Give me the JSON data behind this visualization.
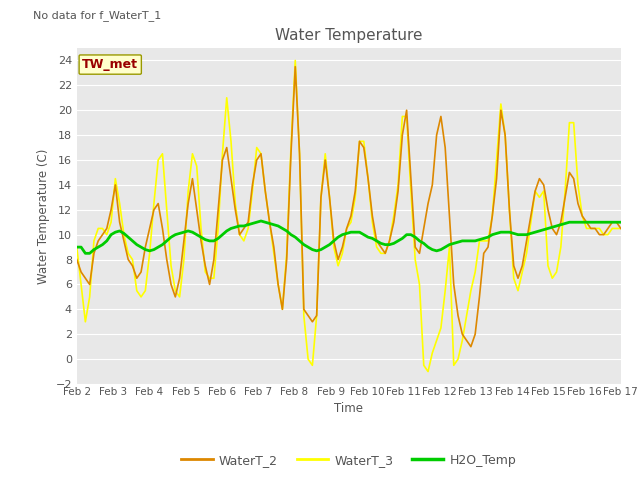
{
  "title": "Water Temperature",
  "ylabel": "Water Temperature (C)",
  "xlabel": "Time",
  "top_left_text": "No data for f_WaterT_1",
  "annotation_box_text": "TW_met",
  "annotation_box_color": "#990000",
  "annotation_box_facecolor": "#ffffcc",
  "annotation_box_edgecolor": "#999900",
  "ylim": [
    -2,
    25
  ],
  "yticks": [
    -2,
    0,
    2,
    4,
    6,
    8,
    10,
    12,
    14,
    16,
    18,
    20,
    22,
    24
  ],
  "fig_bg_color": "#ffffff",
  "plot_bg_color": "#e8e8e8",
  "grid_color": "#ffffff",
  "line_colors": {
    "WaterT_2": "#dd8800",
    "WaterT_3": "#ffff00",
    "H2O_Temp": "#00cc00"
  },
  "line_widths": {
    "WaterT_2": 1.2,
    "WaterT_3": 1.2,
    "H2O_Temp": 2.0
  },
  "tick_color": "#555555",
  "label_color": "#555555",
  "title_color": "#555555",
  "xtick_labels": [
    "Feb 2",
    "Feb 3",
    "Feb 4",
    "Feb 5",
    "Feb 6",
    "Feb 7",
    "Feb 8",
    "Feb 9",
    "Feb 10",
    "Feb 11",
    "Feb 12",
    "Feb 13",
    "Feb 14",
    "Feb 15",
    "Feb 16",
    "Feb 17"
  ],
  "WaterT_2": [
    8.0,
    7.0,
    6.5,
    6.0,
    8.5,
    9.5,
    10.0,
    10.5,
    12.0,
    14.0,
    11.0,
    9.5,
    8.0,
    7.5,
    6.5,
    7.0,
    9.0,
    10.5,
    12.0,
    12.5,
    10.5,
    8.0,
    6.0,
    5.0,
    6.5,
    9.5,
    12.5,
    14.5,
    12.0,
    9.5,
    7.5,
    6.0,
    8.0,
    12.0,
    16.0,
    17.0,
    14.5,
    12.0,
    10.0,
    10.5,
    11.0,
    14.0,
    16.0,
    16.5,
    13.5,
    11.0,
    9.0,
    6.0,
    4.0,
    8.0,
    16.5,
    23.5,
    16.5,
    4.0,
    3.5,
    3.0,
    3.5,
    13.0,
    16.0,
    13.0,
    9.5,
    8.0,
    9.0,
    10.5,
    11.5,
    13.5,
    17.5,
    17.0,
    14.5,
    11.5,
    9.5,
    9.0,
    8.5,
    9.5,
    11.0,
    13.5,
    18.0,
    20.0,
    14.5,
    9.0,
    8.5,
    10.5,
    12.5,
    14.0,
    18.0,
    19.5,
    17.0,
    11.5,
    6.0,
    3.5,
    2.0,
    1.5,
    1.0,
    2.0,
    5.0,
    8.5,
    9.0,
    11.5,
    14.5,
    20.0,
    18.0,
    12.0,
    7.5,
    6.5,
    7.5,
    9.5,
    11.5,
    13.5,
    14.5,
    14.0,
    12.0,
    10.5,
    10.0,
    11.0,
    13.0,
    15.0,
    14.5,
    12.5,
    11.5,
    11.0,
    10.5,
    10.5,
    10.0,
    10.0,
    10.5,
    11.0,
    11.0,
    10.5
  ],
  "WaterT_3": [
    9.0,
    6.0,
    3.0,
    5.0,
    9.5,
    10.5,
    10.5,
    10.0,
    11.0,
    14.5,
    12.5,
    10.0,
    8.5,
    8.0,
    5.5,
    5.0,
    5.5,
    8.5,
    12.5,
    16.0,
    16.5,
    12.0,
    7.5,
    5.5,
    5.0,
    8.0,
    13.5,
    16.5,
    15.5,
    10.5,
    7.0,
    6.5,
    6.5,
    10.5,
    16.5,
    21.0,
    17.5,
    12.5,
    10.0,
    9.5,
    10.5,
    13.5,
    17.0,
    16.5,
    13.5,
    11.0,
    8.5,
    6.0,
    4.0,
    8.5,
    17.0,
    24.0,
    16.5,
    3.5,
    0.0,
    -0.5,
    3.5,
    13.0,
    16.5,
    13.0,
    9.0,
    7.5,
    8.5,
    10.5,
    11.0,
    13.0,
    17.5,
    17.5,
    14.5,
    11.0,
    9.0,
    8.5,
    8.5,
    9.5,
    11.5,
    14.0,
    19.5,
    19.5,
    13.5,
    8.0,
    6.0,
    -0.5,
    -1.0,
    0.5,
    1.5,
    2.5,
    5.5,
    9.0,
    -0.5,
    0.0,
    1.5,
    3.5,
    5.5,
    7.0,
    9.5,
    9.5,
    9.5,
    11.5,
    16.0,
    20.5,
    18.0,
    12.0,
    6.5,
    5.5,
    7.0,
    8.5,
    11.0,
    13.5,
    13.0,
    13.5,
    7.5,
    6.5,
    7.0,
    9.0,
    13.5,
    19.0,
    19.0,
    14.0,
    11.5,
    10.5,
    10.5,
    10.5,
    10.5,
    10.0,
    10.0,
    10.5,
    10.5,
    10.5
  ],
  "H2O_Temp": [
    9.0,
    9.0,
    8.5,
    8.5,
    8.8,
    9.0,
    9.2,
    9.5,
    10.0,
    10.2,
    10.3,
    10.1,
    9.8,
    9.5,
    9.2,
    9.0,
    8.8,
    8.7,
    8.8,
    9.0,
    9.2,
    9.5,
    9.8,
    10.0,
    10.1,
    10.2,
    10.3,
    10.2,
    10.0,
    9.8,
    9.6,
    9.5,
    9.5,
    9.7,
    10.0,
    10.3,
    10.5,
    10.6,
    10.7,
    10.7,
    10.8,
    10.9,
    11.0,
    11.1,
    11.0,
    10.9,
    10.8,
    10.7,
    10.5,
    10.3,
    10.0,
    9.8,
    9.5,
    9.2,
    9.0,
    8.8,
    8.7,
    8.8,
    9.0,
    9.2,
    9.5,
    9.8,
    10.0,
    10.1,
    10.2,
    10.2,
    10.2,
    10.0,
    9.8,
    9.7,
    9.5,
    9.3,
    9.2,
    9.2,
    9.3,
    9.5,
    9.7,
    10.0,
    10.0,
    9.8,
    9.5,
    9.3,
    9.0,
    8.8,
    8.7,
    8.8,
    9.0,
    9.2,
    9.3,
    9.4,
    9.5,
    9.5,
    9.5,
    9.5,
    9.6,
    9.7,
    9.8,
    10.0,
    10.1,
    10.2,
    10.2,
    10.2,
    10.1,
    10.0,
    10.0,
    10.0,
    10.1,
    10.2,
    10.3,
    10.4,
    10.5,
    10.6,
    10.7,
    10.8,
    10.9,
    11.0,
    11.0,
    11.0,
    11.0,
    11.0,
    11.0,
    11.0,
    11.0,
    11.0,
    11.0,
    11.0,
    11.0,
    11.0
  ]
}
